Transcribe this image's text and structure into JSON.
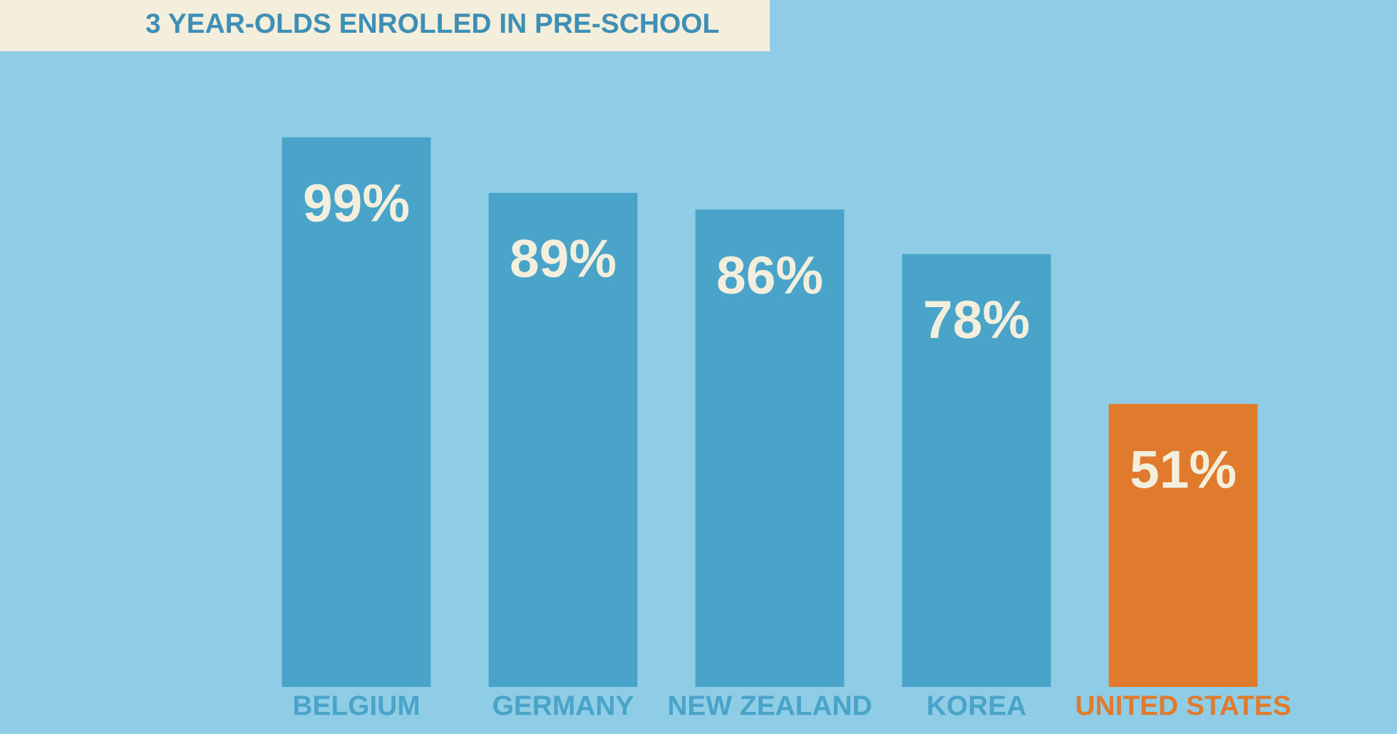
{
  "chart_data": {
    "type": "bar",
    "title": "3 YEAR-OLDS ENROLLED IN PRE-SCHOOL",
    "categories": [
      "BELGIUM",
      "GERMANY",
      "NEW ZEALAND",
      "KOREA",
      "UNITED STATES"
    ],
    "values": [
      99,
      89,
      86,
      78,
      51
    ],
    "value_labels": [
      "99%",
      "89%",
      "86%",
      "78%",
      "51%"
    ],
    "colors": [
      "#4aa3c9",
      "#4aa3c9",
      "#4aa3c9",
      "#4aa3c9",
      "#e07b2e"
    ],
    "grid": false,
    "legend": false
  }
}
